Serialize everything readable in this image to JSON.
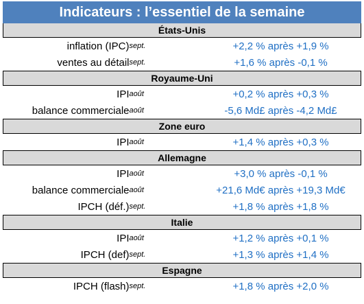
{
  "title": "Indicateurs : l’essentiel de la semaine",
  "colors": {
    "title_bg": "#4f81bd",
    "country_bg": "#d9d9d9",
    "value_text": "#1f6fc4"
  },
  "sections": [
    {
      "country": "États-Unis",
      "rows": [
        {
          "indicator": "inflation (IPC)",
          "period": "sept.",
          "value": "+2,2 % après +1,9 %"
        },
        {
          "indicator": "ventes au détail",
          "period": "sept.",
          "value": "+1,6 % après -0,1 %"
        }
      ]
    },
    {
      "country": "Royaume-Uni",
      "rows": [
        {
          "indicator": "IPI",
          "period": "août",
          "value": "+0,2 % après +0,3 %"
        },
        {
          "indicator": "balance commerciale",
          "period": "août",
          "value": "-5,6 Md£ après -4,2 Md£"
        }
      ]
    },
    {
      "country": "Zone euro",
      "rows": [
        {
          "indicator": "IPI",
          "period": "août",
          "value": "+1,4 % après +0,3 %"
        }
      ]
    },
    {
      "country": "Allemagne",
      "rows": [
        {
          "indicator": "IPI",
          "period": "août",
          "value": "+3,0 % après -0,1 %"
        },
        {
          "indicator": "balance commerciale",
          "period": "août",
          "value": "+21,6 Md€ après +19,3 Md€"
        },
        {
          "indicator": "IPCH (déf.)",
          "period": "sept.",
          "value": "+1,8 % après +1,8 %"
        }
      ]
    },
    {
      "country": "Italie",
      "rows": [
        {
          "indicator": "IPI",
          "period": "août",
          "value": "+1,2 % après +0,1 %"
        },
        {
          "indicator": "IPCH (def)",
          "period": "sept.",
          "value": "+1,3 % après +1,4 %"
        }
      ]
    },
    {
      "country": "Espagne",
      "rows": [
        {
          "indicator": "IPCH (flash)",
          "period": "sept.",
          "value": "+1,8 % après +2,0 %"
        }
      ]
    }
  ]
}
